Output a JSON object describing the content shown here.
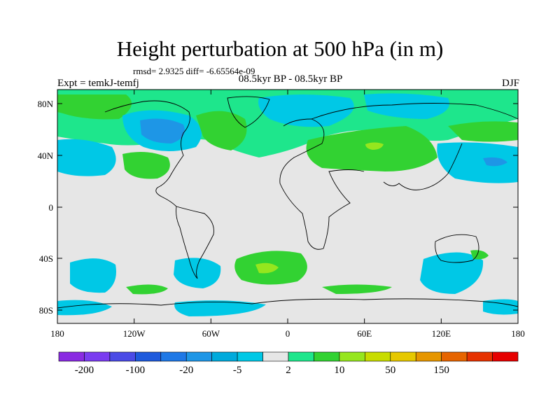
{
  "title": "Height perturbation at 500 hPa (in m)",
  "stats": "rmsd= 2.9325 diff= -6.65564e-09",
  "experiment": "Expt = temkJ-temfj",
  "period": "08.5kyr BP - 08.5kyr BP",
  "season": "DJF",
  "lat_labels": [
    "80N",
    "40N",
    "0",
    "40S",
    "80S"
  ],
  "lon_labels": [
    "180",
    "120W",
    "60W",
    "0",
    "60E",
    "120E",
    "180"
  ],
  "colorbar": {
    "colors": [
      "#8a2be2",
      "#7a3cf0",
      "#4b4be6",
      "#1e5adc",
      "#1e78e6",
      "#1e96e6",
      "#00aadc",
      "#00c8e6",
      "#e6e6e6",
      "#1ee68c",
      "#32d232",
      "#96e61e",
      "#c8dc00",
      "#e6c800",
      "#e69600",
      "#e66400",
      "#e63200",
      "#e60000"
    ],
    "labels": [
      "-200",
      "-100",
      "-20",
      "-5",
      "2",
      "10",
      "50",
      "150"
    ]
  },
  "fill_colors": {
    "background": "#e6e6e6",
    "pos_light": "#1ee68c",
    "pos_mid": "#32d232",
    "pos_high": "#96e61e",
    "neg_light": "#00c8e6",
    "neg_mid": "#00aadc",
    "neg_dark": "#1e96e6"
  }
}
